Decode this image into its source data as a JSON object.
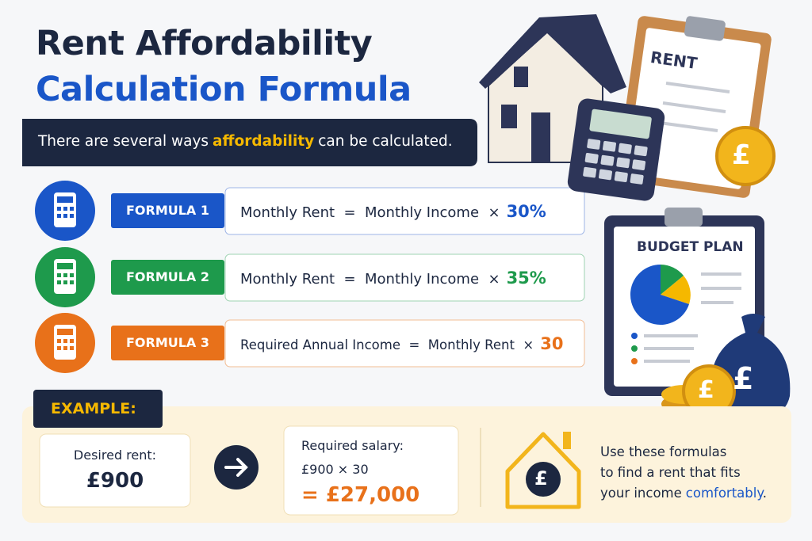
{
  "header": {
    "title_line1": "Rent Affordability",
    "title_line2": "Calculation Formula"
  },
  "intro": {
    "before": "There are several ways",
    "highlight": "affordability",
    "after": "can be calculated."
  },
  "formulas": [
    {
      "label": "FORMULA 1",
      "expression": "Monthly Rent  =  Monthly Income  ×",
      "factor": "30%"
    },
    {
      "label": "FORMULA 2",
      "expression": "Monthly Rent  =  Monthly Income  ×",
      "factor": "35%"
    },
    {
      "label": "FORMULA 3",
      "expression": "Required Annual Income  =  Monthly Rent  ×",
      "factor": "30"
    }
  ],
  "example": {
    "heading": "EXAMPLE:",
    "rent_label": "Desired rent:",
    "rent_value": "£900",
    "salary_label": "Required salary:",
    "salary_calc": "£900 × 30",
    "salary_result": "= £27,000",
    "tip_line1": "Use these formulas",
    "tip_line2": "to find a rent that fits",
    "tip_line3": "your income",
    "tip_highlight": "comfortably",
    "tip_end": "."
  },
  "illustrations": {
    "clipboard": "RENT",
    "budget": "BUDGET PLAN",
    "currency": "£"
  }
}
